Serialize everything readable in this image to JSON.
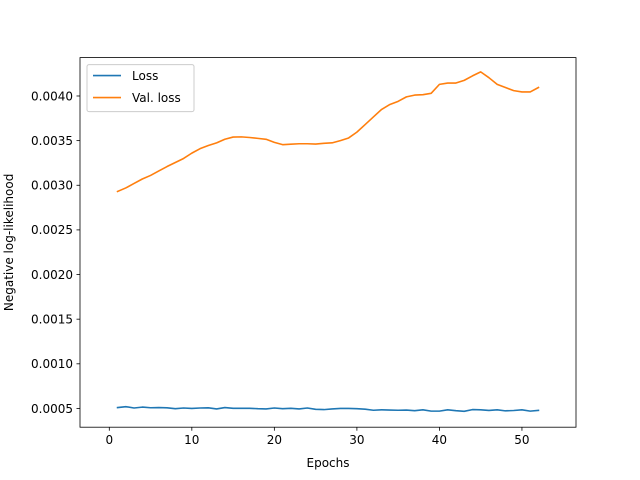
{
  "chart_data": {
    "type": "line",
    "title": "",
    "xlabel": "Epochs",
    "ylabel": "Negative log-likelihood",
    "xlim": [
      -3.55,
      56.55
    ],
    "ylim": [
      0.00029,
      0.00443
    ],
    "xticks": [
      0,
      10,
      20,
      30,
      40,
      50
    ],
    "yticks": [
      0.0005,
      0.001,
      0.0015,
      0.002,
      0.0025,
      0.003,
      0.0035,
      0.004
    ],
    "ytick_labels": [
      "0.0005",
      "0.0010",
      "0.0015",
      "0.0020",
      "0.0025",
      "0.0030",
      "0.0035",
      "0.0040"
    ],
    "grid": false,
    "legend": "top-left",
    "x": [
      1,
      2,
      3,
      4,
      5,
      6,
      7,
      8,
      9,
      10,
      11,
      12,
      13,
      14,
      15,
      16,
      17,
      18,
      19,
      20,
      21,
      22,
      23,
      24,
      25,
      26,
      27,
      28,
      29,
      30,
      31,
      32,
      33,
      34,
      35,
      36,
      37,
      38,
      39,
      40,
      41,
      42,
      43,
      44,
      45,
      46,
      47,
      48,
      49,
      50,
      51,
      52
    ],
    "series": [
      {
        "name": "Loss",
        "color": "#1f77b4",
        "values": [
          0.00051,
          0.00052,
          0.000505,
          0.000515,
          0.000508,
          0.00051,
          0.000507,
          0.000497,
          0.000505,
          0.0005,
          0.000505,
          0.000507,
          0.000495,
          0.00051,
          0.000502,
          0.000502,
          0.000502,
          0.000497,
          0.000495,
          0.000505,
          0.000497,
          0.000502,
          0.000495,
          0.000505,
          0.00049,
          0.000487,
          0.000495,
          0.0005,
          0.0005,
          0.000497,
          0.000492,
          0.00048,
          0.000485,
          0.000482,
          0.00048,
          0.000482,
          0.000475,
          0.000485,
          0.00047,
          0.00047,
          0.000485,
          0.000475,
          0.000468,
          0.000487,
          0.000485,
          0.000478,
          0.000485,
          0.000473,
          0.000477,
          0.000485,
          0.00047,
          0.000478
        ]
      },
      {
        "name": "Val. loss",
        "color": "#ff7f0e",
        "values": [
          0.00293,
          0.00297,
          0.00302,
          0.00307,
          0.00311,
          0.00316,
          0.00321,
          0.003255,
          0.0033,
          0.00336,
          0.00341,
          0.003445,
          0.003475,
          0.003515,
          0.00354,
          0.003542,
          0.003535,
          0.003525,
          0.003515,
          0.00348,
          0.003455,
          0.00346,
          0.003465,
          0.003465,
          0.003462,
          0.00347,
          0.003475,
          0.0035,
          0.00353,
          0.003595,
          0.00368,
          0.003765,
          0.00385,
          0.003905,
          0.00394,
          0.00399,
          0.00401,
          0.004015,
          0.00403,
          0.00413,
          0.004145,
          0.004145,
          0.004175,
          0.004225,
          0.00427,
          0.004205,
          0.00413,
          0.004095,
          0.00406,
          0.004045,
          0.004045,
          0.004095
        ]
      }
    ]
  }
}
